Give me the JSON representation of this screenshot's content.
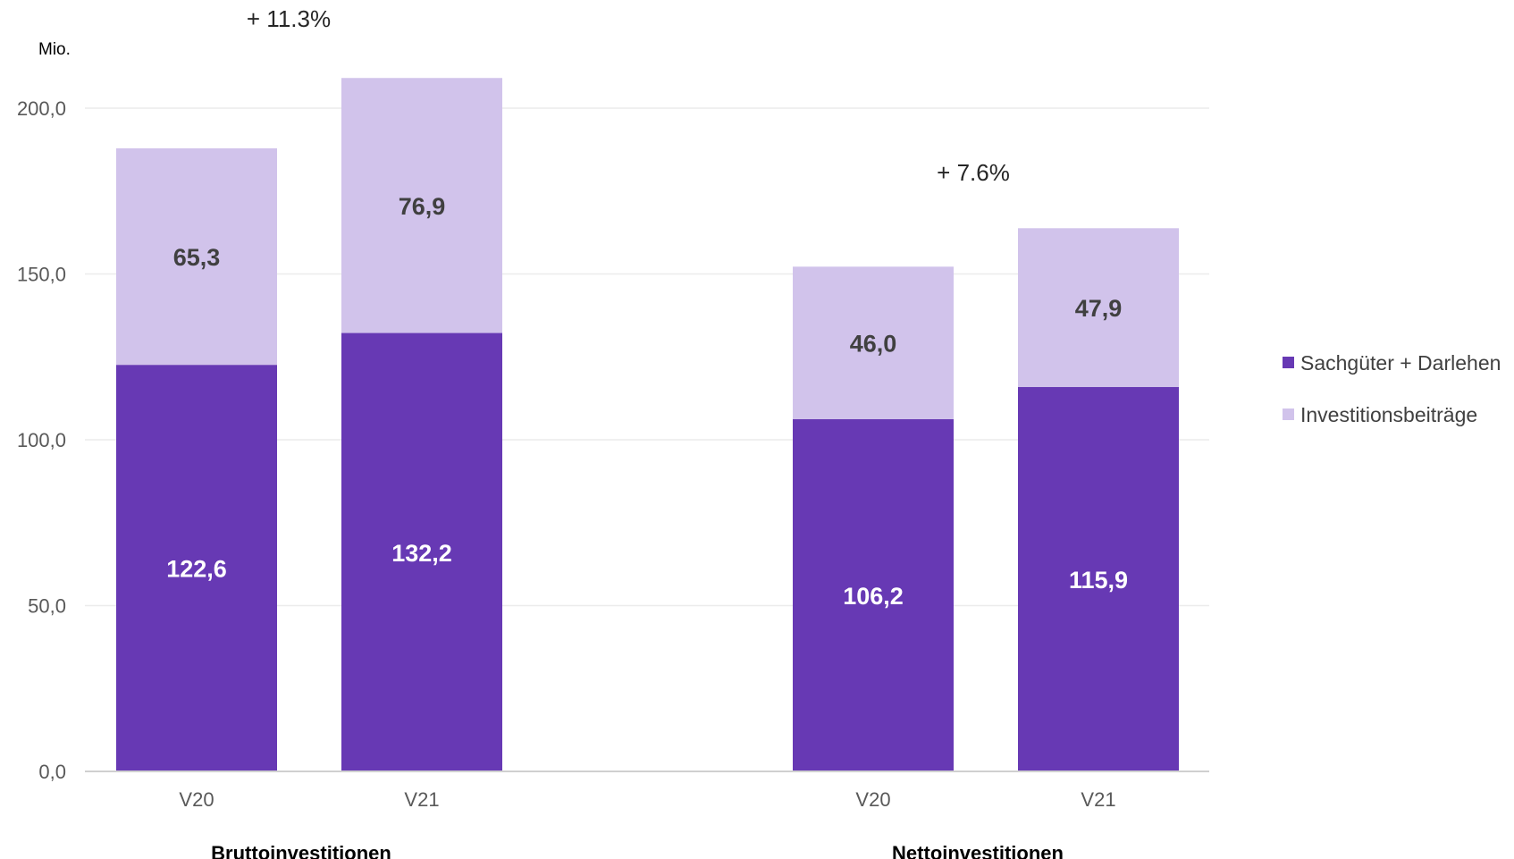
{
  "chart_data": {
    "type": "bar",
    "stacked": true,
    "unit_label": "Mio.",
    "ylim": [
      0,
      200
    ],
    "yticks": [
      "0,0",
      "50,0",
      "100,0",
      "150,0",
      "200,0"
    ],
    "grid": true,
    "legend_position": "right",
    "groups": [
      {
        "name": "Bruttoinvestitionen",
        "change_label": "+ 11.3%",
        "categories": [
          "V20",
          "V21"
        ],
        "series": [
          {
            "name": "Sachgüter + Darlehen",
            "values": [
              122.6,
              132.2
            ],
            "labels": [
              "122,6",
              "132,2"
            ]
          },
          {
            "name": "Investitionsbeiträge",
            "values": [
              65.3,
              76.9
            ],
            "labels": [
              "65,3",
              "76,9"
            ]
          }
        ]
      },
      {
        "name": "Nettoinvestitionen",
        "change_label": "+ 7.6%",
        "categories": [
          "V20",
          "V21"
        ],
        "series": [
          {
            "name": "Sachgüter + Darlehen",
            "values": [
              106.2,
              115.9
            ],
            "labels": [
              "106,2",
              "115,9"
            ]
          },
          {
            "name": "Investitionsbeiträge",
            "values": [
              46.0,
              47.9
            ],
            "labels": [
              "46,0",
              "47,9"
            ]
          }
        ]
      }
    ],
    "legend": [
      {
        "name": "Sachgüter + Darlehen",
        "color": "#6739B4"
      },
      {
        "name": "Investitionsbeiträge",
        "color": "#D1C3EB"
      }
    ],
    "colors": {
      "dark": "#6739B4",
      "light": "#D1C3EB"
    }
  }
}
